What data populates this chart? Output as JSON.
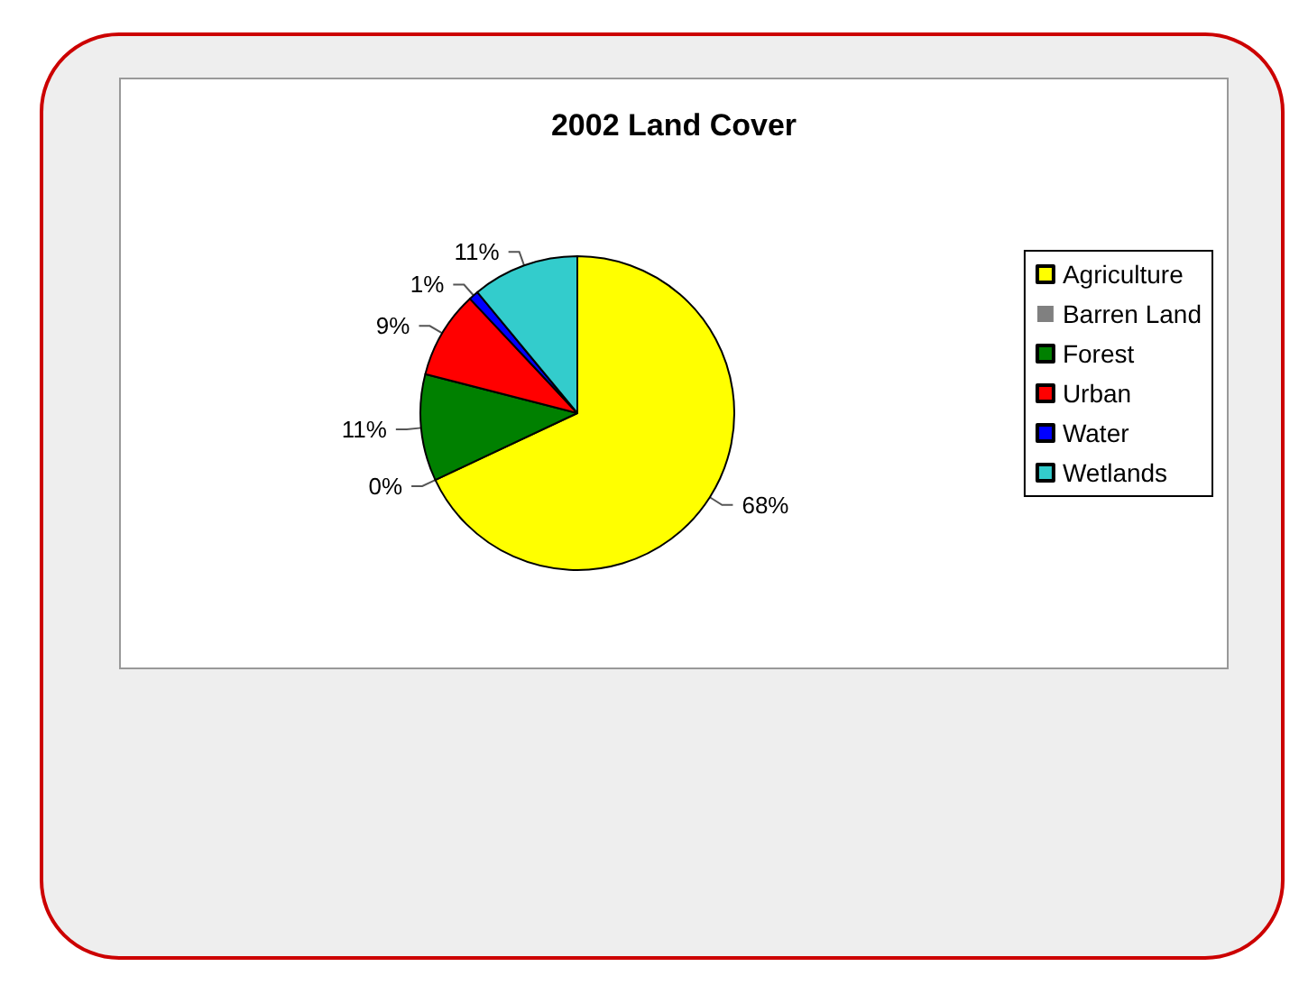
{
  "chart_data": {
    "type": "pie",
    "title": "2002 Land Cover",
    "categories": [
      "Agriculture",
      "Barren Land",
      "Forest",
      "Urban",
      "Water",
      "Wetlands"
    ],
    "values": [
      68,
      0,
      11,
      9,
      1,
      11
    ],
    "colors": [
      "#ffff00",
      "#808080",
      "#008000",
      "#ff0000",
      "#0000ff",
      "#33cccc"
    ],
    "value_labels": [
      "68%",
      "0%",
      "11%",
      "9%",
      "1%",
      "11%"
    ],
    "legend": "right"
  }
}
